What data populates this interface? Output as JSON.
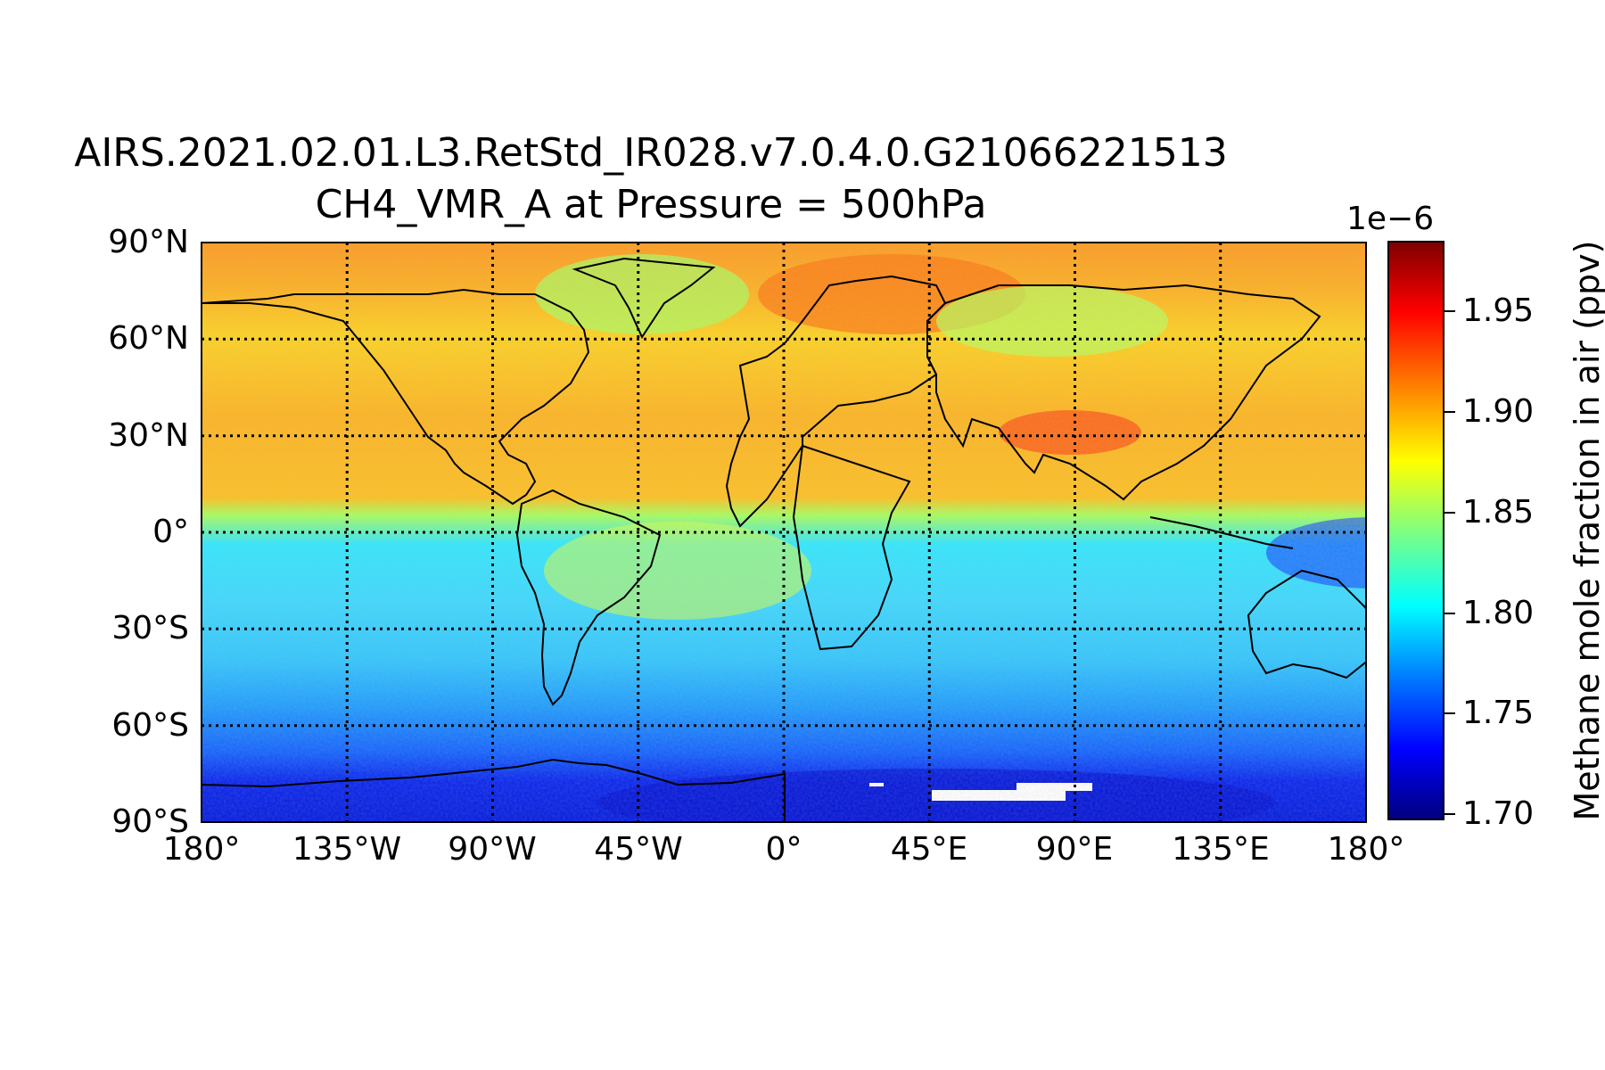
{
  "title_line1": "AIRS.2021.02.01.L3.RetStd_IR028.v7.0.4.0.G21066221513",
  "title_line2": "CH4_VMR_A at Pressure = 500hPa",
  "map": {
    "projection": "equirectangular",
    "lon_range": [
      -180,
      180
    ],
    "lat_range": [
      -90,
      90
    ],
    "gridlines": "dotted",
    "lat_ticks": [
      {
        "lat": 90,
        "label": "90°N"
      },
      {
        "lat": 60,
        "label": "60°N"
      },
      {
        "lat": 30,
        "label": "30°N"
      },
      {
        "lat": 0,
        "label": "0°"
      },
      {
        "lat": -30,
        "label": "30°S"
      },
      {
        "lat": -60,
        "label": "60°S"
      },
      {
        "lat": -90,
        "label": "90°S"
      }
    ],
    "lon_ticks": [
      {
        "lon": -180,
        "label": "180°"
      },
      {
        "lon": -135,
        "label": "135°W"
      },
      {
        "lon": -90,
        "label": "90°W"
      },
      {
        "lon": -45,
        "label": "45°W"
      },
      {
        "lon": 0,
        "label": "0°"
      },
      {
        "lon": 45,
        "label": "45°E"
      },
      {
        "lon": 90,
        "label": "90°E"
      },
      {
        "lon": 135,
        "label": "135°E"
      },
      {
        "lon": 180,
        "label": "180°"
      }
    ],
    "colormap": "jet",
    "colors": {
      "darkblue": "#00007f",
      "blue": "#0000ff",
      "azure": "#0080ff",
      "cyan": "#00ffff",
      "green": "#80ff80",
      "yellow": "#ffff00",
      "orange": "#ff8000",
      "red": "#ff0000",
      "darkred": "#7f0000"
    }
  },
  "colorbar": {
    "exponent_label": "1e−6",
    "label": "Methane mole fraction in air (ppv)",
    "min": 1.697,
    "max": 1.985,
    "ticks": [
      {
        "value": 1.7,
        "label": "1.70"
      },
      {
        "value": 1.75,
        "label": "1.75"
      },
      {
        "value": 1.8,
        "label": "1.80"
      },
      {
        "value": 1.85,
        "label": "1.85"
      },
      {
        "value": 1.9,
        "label": "1.90"
      },
      {
        "value": 1.95,
        "label": "1.95"
      }
    ]
  }
}
